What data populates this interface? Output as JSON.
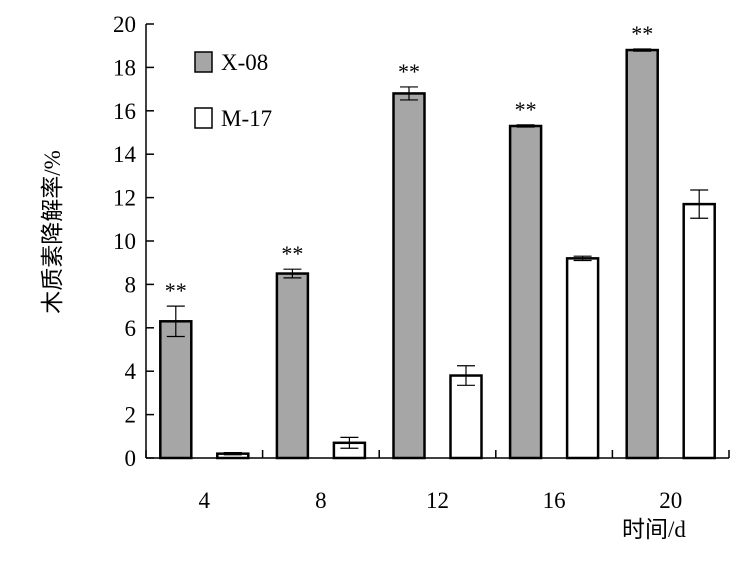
{
  "chart_data": {
    "type": "bar",
    "title": "",
    "xlabel": "时间/d",
    "ylabel": "木质素降解率/%",
    "categories": [
      "4",
      "8",
      "12",
      "16",
      "20"
    ],
    "ylim": [
      0,
      20
    ],
    "yticks": [
      0,
      2,
      4,
      6,
      8,
      10,
      12,
      14,
      16,
      18,
      20
    ],
    "grid": false,
    "legend_position": "top-left",
    "series": [
      {
        "name": "X-08",
        "color": "#a6a6a6",
        "values": [
          6.3,
          8.5,
          16.8,
          15.3,
          18.8
        ],
        "errors": [
          0.7,
          0.2,
          0.3,
          0.05,
          0.05
        ]
      },
      {
        "name": "M-17",
        "color": "#ffffff",
        "values": [
          0.2,
          0.7,
          3.8,
          9.2,
          11.7
        ],
        "errors": [
          0.05,
          0.25,
          0.45,
          0.1,
          0.65
        ]
      }
    ],
    "annotations": [
      "**",
      "**",
      "**",
      "**",
      "**"
    ]
  }
}
